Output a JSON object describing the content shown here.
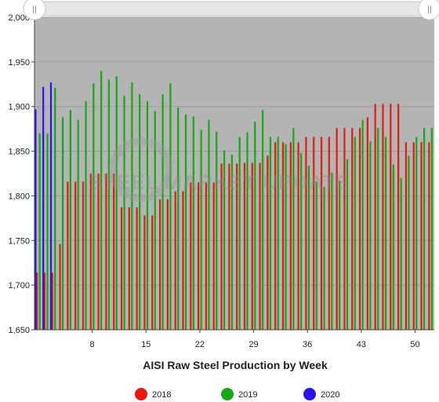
{
  "chart_data": {
    "type": "bar",
    "xlabel": "AISI Raw Steel Production by Week",
    "ylabel": "",
    "ylim": [
      1650,
      2000
    ],
    "yticks": [
      1650,
      1700,
      1750,
      1800,
      1850,
      1900,
      1950,
      2000
    ],
    "ytick_labels": [
      "1,650",
      "1,700",
      "1,750",
      "1,800",
      "1,850",
      "1,900",
      "1,950",
      "2,000"
    ],
    "xlim": [
      0.5,
      52.5
    ],
    "xticks": [
      8,
      15,
      22,
      29,
      36,
      43,
      50
    ],
    "xtick_labels": [
      "8",
      "15",
      "22",
      "29",
      "36",
      "43",
      "50"
    ],
    "grid": false,
    "legend_position": "bottom-center",
    "series": [
      {
        "name": "2018",
        "color": "#e8180e",
        "weeks": [
          1,
          2,
          3,
          4,
          5,
          6,
          7,
          8,
          9,
          10,
          11,
          12,
          13,
          14,
          15,
          16,
          17,
          18,
          19,
          20,
          21,
          22,
          23,
          24,
          25,
          26,
          27,
          28,
          29,
          30,
          31,
          32,
          33,
          34,
          35,
          36,
          37,
          38,
          39,
          40,
          41,
          42,
          43,
          44,
          45,
          46,
          47,
          48,
          49,
          50,
          51,
          52
        ],
        "values": [
          1714,
          1714,
          1714,
          1746,
          1816,
          1816,
          1816,
          1825,
          1825,
          1825,
          1825,
          1787,
          1787,
          1787,
          1778,
          1778,
          1796,
          1796,
          1805,
          1805,
          1815,
          1815,
          1815,
          1815,
          1836,
          1836,
          1836,
          1837,
          1837,
          1837,
          1845,
          1860,
          1860,
          1860,
          1860,
          1866,
          1866,
          1866,
          1866,
          1876,
          1876,
          1876,
          1876,
          1888,
          1903,
          1903,
          1903,
          1903,
          1860,
          1860,
          1860,
          1860
        ]
      },
      {
        "name": "2019",
        "color": "#14a814",
        "weeks": [
          1,
          2,
          3,
          4,
          5,
          6,
          7,
          8,
          9,
          10,
          11,
          12,
          13,
          14,
          15,
          16,
          17,
          18,
          19,
          20,
          21,
          22,
          23,
          24,
          25,
          26,
          27,
          28,
          29,
          30,
          31,
          32,
          33,
          34,
          35,
          36,
          37,
          38,
          39,
          40,
          41,
          42,
          43,
          44,
          45,
          46,
          47,
          48,
          49,
          50,
          51,
          52
        ],
        "values": [
          1870,
          1870,
          1921,
          1888,
          1896,
          1885,
          1906,
          1926,
          1940,
          1930,
          1934,
          1912,
          1927,
          1914,
          1906,
          1895,
          1914,
          1926,
          1899,
          1891,
          1889,
          1874,
          1885,
          1872,
          1851,
          1846,
          1866,
          1871,
          1883,
          1896,
          1866,
          1866,
          1858,
          1876,
          1848,
          1834,
          1816,
          1810,
          1826,
          1817,
          1841,
          1866,
          1885,
          1861,
          1876,
          1866,
          1835,
          1820,
          1845,
          1866,
          1876,
          1876
        ]
      },
      {
        "name": "2020",
        "color": "#2a12e8",
        "weeks": [
          1,
          2,
          3
        ],
        "values": [
          1897,
          1922,
          1927
        ]
      }
    ],
    "watermark": "STEEL MARKET UPDATE"
  },
  "scrollbar": {
    "left_handle_glyph": "||",
    "right_handle_glyph": "||"
  }
}
